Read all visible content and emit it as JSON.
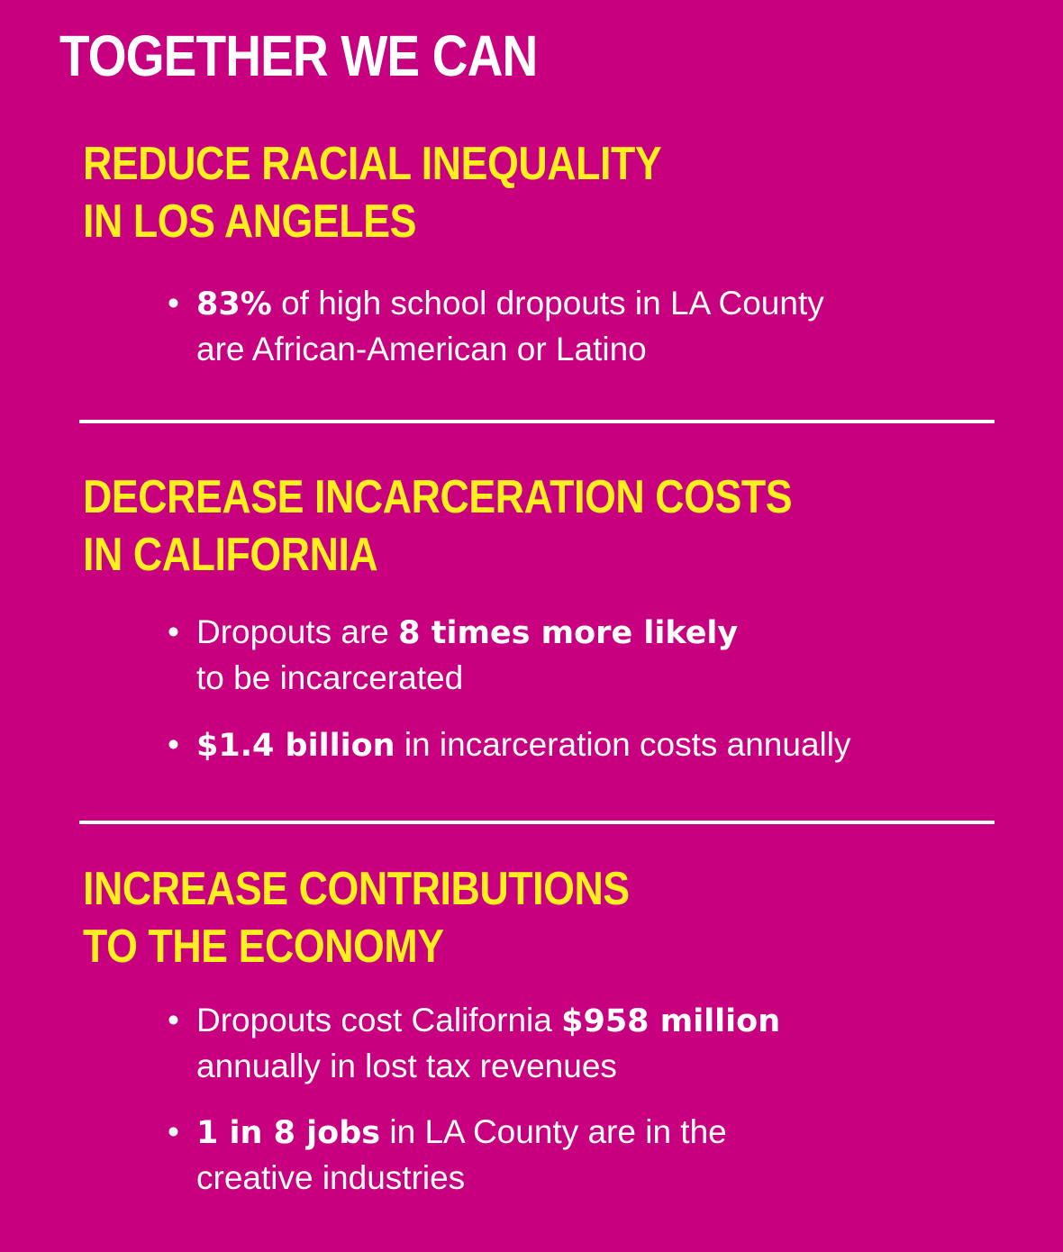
{
  "title": "TOGETHER WE CAN",
  "colors": {
    "background": "#C8007F",
    "heading": "#FFEF1E",
    "text": "#FFFFFF"
  },
  "sections": [
    {
      "heading_lines": [
        "REDUCE RACIAL INEQUALITY",
        "IN LOS ANGELES"
      ],
      "bullets": [
        {
          "line1_bold": "83%",
          "line1_rest": "of high school dropouts in LA County",
          "line2": "are African-American or Latino"
        }
      ]
    },
    {
      "heading_lines": [
        "DECREASE INCARCERATION COSTS",
        "IN CALIFORNIA"
      ],
      "bullets": [
        {
          "line1_pre": "Dropouts are",
          "line1_bold": "8 times more likely",
          "line2": "to be incarcerated"
        },
        {
          "line1_bold": "$1.4 billion",
          "line1_rest": "in incarceration costs annually"
        }
      ]
    },
    {
      "heading_lines": [
        "INCREASE CONTRIBUTIONS",
        "TO THE ECONOMY"
      ],
      "bullets": [
        {
          "line1_pre": "Dropouts cost California",
          "line1_bold": "$958 million",
          "line2": "annually in lost tax revenues"
        },
        {
          "line1_bold": "1 in 8 jobs",
          "line1_rest": "in LA County are in the",
          "line2": "creative industries"
        }
      ]
    }
  ]
}
